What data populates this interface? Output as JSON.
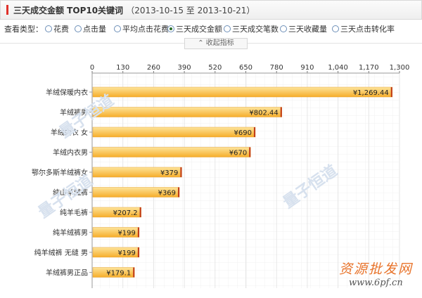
{
  "header": {
    "title": "三天成交金额 TOP10关键词",
    "range": "（2013-10-15 至 2013-10-21）"
  },
  "filters": {
    "label": "查看类型：",
    "options": [
      "花费",
      "点击量",
      "平均点击花费",
      "三天成交金额",
      "三天成交笔数",
      "三天收藏量",
      "三天点击转化率"
    ],
    "selected": "三天成交金额"
  },
  "collapse_label": "收起指标",
  "watermarks": {
    "chinese": "资源批发网",
    "url": "www.6pf.cn",
    "overlay": "量子恒道"
  },
  "colors": {
    "bar_top": "#fde49a",
    "bar_bottom": "#f6ad2a",
    "bar_edge": "#c03a1a",
    "grid": "#e6e6e6"
  },
  "chart_data": {
    "type": "bar",
    "orientation": "horizontal",
    "categories": [
      "羊绒保暖内衣",
      "羊绒裤男",
      "羊绒内衣 女",
      "羊绒内衣男",
      "鄂尔多斯羊绒裤女",
      "纯山羊绒裤",
      "纯羊毛裤",
      "纯羊绒裤男",
      "纯羊绒裤 无缝 男",
      "羊绒裤男正品"
    ],
    "values": [
      1269.44,
      802.44,
      690,
      670,
      379,
      369,
      207.2,
      199,
      199,
      179.1
    ],
    "value_labels": [
      "¥1,269.44",
      "¥802.44",
      "¥690",
      "¥670",
      "¥379",
      "¥369",
      "¥207.2",
      "¥199",
      "¥199",
      "¥179.1"
    ],
    "xlim": [
      0,
      1300
    ],
    "ticks": [
      "0",
      "130",
      "260",
      "390",
      "520",
      "650",
      "780",
      "910",
      "1,040",
      "1,170",
      "1,300"
    ],
    "grid": true
  }
}
